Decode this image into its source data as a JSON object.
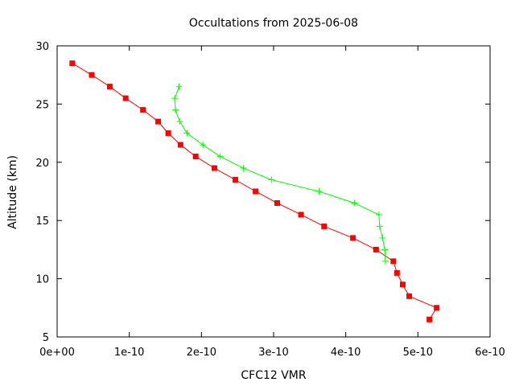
{
  "chart_data": {
    "type": "line",
    "title": "Occultations from 2025-06-08",
    "xlabel": "CFC12 VMR",
    "ylabel": "Altitude (km)",
    "xlim": [
      0,
      6e-10
    ],
    "ylim": [
      5,
      30
    ],
    "x_ticks": [
      {
        "value": 0,
        "label": "0e+00"
      },
      {
        "value": 1e-10,
        "label": "1e-10"
      },
      {
        "value": 2e-10,
        "label": "2e-10"
      },
      {
        "value": 3e-10,
        "label": "3e-10"
      },
      {
        "value": 4e-10,
        "label": "4e-10"
      },
      {
        "value": 5e-10,
        "label": "5e-10"
      },
      {
        "value": 6e-10,
        "label": "6e-10"
      }
    ],
    "y_ticks": [
      {
        "value": 5,
        "label": "5"
      },
      {
        "value": 10,
        "label": "10"
      },
      {
        "value": 15,
        "label": "15"
      },
      {
        "value": 20,
        "label": "20"
      },
      {
        "value": 25,
        "label": "25"
      },
      {
        "value": 30,
        "label": "30"
      }
    ],
    "grid": false,
    "legend": "none",
    "series": [
      {
        "color": "#ff0000",
        "marker": "square",
        "points": [
          [
            2.1e-11,
            28.5
          ],
          [
            4.8e-11,
            27.5
          ],
          [
            7.3e-11,
            26.5
          ],
          [
            9.5e-11,
            25.5
          ],
          [
            1.19e-10,
            24.5
          ],
          [
            1.4e-10,
            23.5
          ],
          [
            1.54e-10,
            22.5
          ],
          [
            1.71e-10,
            21.5
          ],
          [
            1.92e-10,
            20.5
          ],
          [
            2.18e-10,
            19.5
          ],
          [
            2.47e-10,
            18.5
          ],
          [
            2.75e-10,
            17.5
          ],
          [
            3.05e-10,
            16.5
          ],
          [
            3.38e-10,
            15.5
          ],
          [
            3.7e-10,
            14.5
          ],
          [
            4.1e-10,
            13.5
          ],
          [
            4.42e-10,
            12.5
          ],
          [
            4.66e-10,
            11.5
          ],
          [
            4.71e-10,
            10.5
          ],
          [
            4.79e-10,
            9.5
          ],
          [
            4.88e-10,
            8.5
          ],
          [
            5.26e-10,
            7.5
          ],
          [
            5.16e-10,
            6.5
          ]
        ]
      },
      {
        "color": "#00ff00",
        "marker": "plus",
        "points": [
          [
            1.69e-10,
            26.5
          ],
          [
            1.63e-10,
            25.5
          ],
          [
            1.64e-10,
            24.5
          ],
          [
            1.7e-10,
            23.5
          ],
          [
            1.8e-10,
            22.5
          ],
          [
            2.02e-10,
            21.5
          ],
          [
            2.26e-10,
            20.5
          ],
          [
            2.58e-10,
            19.5
          ],
          [
            2.97e-10,
            18.5
          ],
          [
            3.63e-10,
            17.5
          ],
          [
            4.12e-10,
            16.5
          ],
          [
            4.46e-10,
            15.5
          ],
          [
            4.47e-10,
            14.5
          ],
          [
            4.51e-10,
            13.5
          ],
          [
            4.54e-10,
            12.5
          ],
          [
            4.55e-10,
            11.5
          ]
        ]
      }
    ]
  }
}
